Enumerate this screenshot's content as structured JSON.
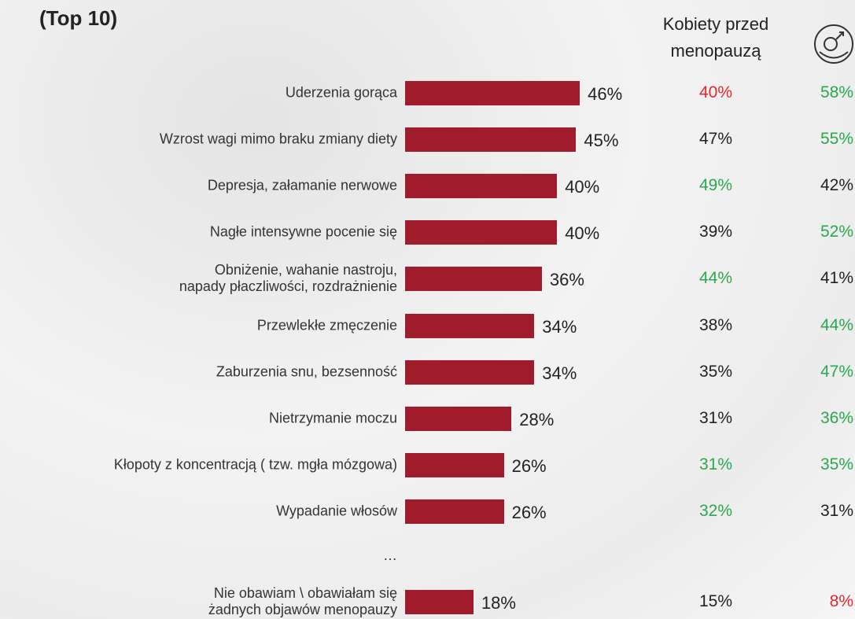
{
  "chart_data": {
    "type": "bar",
    "orientation": "horizontal",
    "title": "(Top 10)",
    "categories": [
      "Uderzenia gorąca",
      "Wzrost wagi mimo braku zmiany diety",
      "Depresja, załamanie nerwowe",
      "Nagłe intensywne pocenie się",
      "Obniżenie, wahanie nastroju,\nnapady płaczliwości, rozdrażnienie",
      "Przewlekłe zmęczenie",
      "Zaburzenia snu, bezsenność",
      "Nietrzymanie moczu",
      "Kłopoty z koncentracją ( tzw. mgła mózgowa)",
      "Wypadanie włosów",
      "Nie obawiam \\ obawiałam się\nżadnych objawów menopauzy"
    ],
    "values": [
      46,
      45,
      40,
      40,
      36,
      34,
      34,
      28,
      26,
      26,
      18
    ],
    "value_labels": [
      "46%",
      "45%",
      "40%",
      "40%",
      "36%",
      "34%",
      "34%",
      "28%",
      "26%",
      "26%",
      "18%"
    ],
    "color": "#a01c2c",
    "xlim": [
      0,
      100
    ],
    "ellipsis": "…",
    "columns": [
      {
        "name": "Kobiety przed\nmenopauzą",
        "values": [
          40,
          47,
          49,
          39,
          44,
          38,
          35,
          31,
          31,
          32,
          15
        ],
        "value_labels": [
          "40%",
          "47%",
          "49%",
          "39%",
          "44%",
          "38%",
          "35%",
          "31%",
          "31%",
          "32%",
          "15%"
        ],
        "colors": [
          "#e8262d",
          "#222222",
          "#2aa84f",
          "#222222",
          "#2aa84f",
          "#222222",
          "#222222",
          "#222222",
          "#2aa84f",
          "#2aa84f",
          "#222222"
        ]
      },
      {
        "values": [
          58,
          55,
          42,
          52,
          41,
          44,
          47,
          36,
          35,
          31,
          8
        ],
        "value_labels": [
          "58%",
          "55%",
          "42%",
          "52%",
          "41%",
          "44%",
          "47%",
          "36%",
          "35%",
          "31%",
          "8%"
        ],
        "colors": [
          "#2aa84f",
          "#2aa84f",
          "#222222",
          "#2aa84f",
          "#222222",
          "#2aa84f",
          "#2aa84f",
          "#2aa84f",
          "#2aa84f",
          "#222222",
          "#e8262d"
        ]
      }
    ]
  }
}
